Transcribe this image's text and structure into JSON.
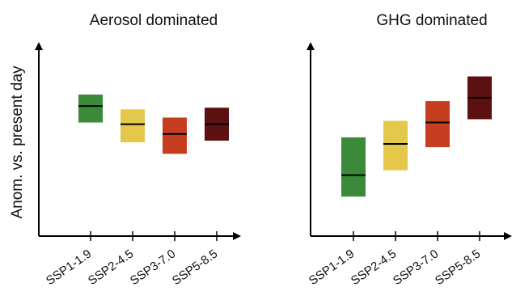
{
  "chart_data": [
    {
      "type": "box",
      "title": "Aerosol dominated",
      "xlabel": "",
      "ylabel": "Anom. vs. present day",
      "categories": [
        "SSP1-1.9",
        "SSP2-4.5",
        "SSP3-7.0",
        "SSP5-8.5"
      ],
      "colors": [
        "#3a8a3a",
        "#e3c84a",
        "#c63d1f",
        "#5c1010"
      ],
      "boxes": [
        {
          "low": 3.3,
          "median": 4.3,
          "high": 5.0
        },
        {
          "low": 2.1,
          "median": 3.2,
          "high": 4.1
        },
        {
          "low": 1.4,
          "median": 2.6,
          "high": 3.6
        },
        {
          "low": 2.2,
          "median": 3.2,
          "high": 4.2
        }
      ],
      "ylim": [
        -3.6,
        7.6
      ],
      "grid": false
    },
    {
      "type": "box",
      "title": "GHG dominated",
      "xlabel": "",
      "ylabel": "",
      "categories": [
        "SSP1-1.9",
        "SSP2-4.5",
        "SSP3-7.0",
        "SSP5-8.5"
      ],
      "colors": [
        "#3a8a3a",
        "#e3c84a",
        "#c63d1f",
        "#5c1010"
      ],
      "boxes": [
        {
          "low": -1.2,
          "median": 0.1,
          "high": 2.4
        },
        {
          "low": 0.4,
          "median": 2.0,
          "high": 3.4
        },
        {
          "low": 1.8,
          "median": 3.3,
          "high": 4.6
        },
        {
          "low": 3.5,
          "median": 4.8,
          "high": 6.1
        }
      ],
      "ylim": [
        -3.6,
        7.6
      ],
      "grid": false
    }
  ]
}
